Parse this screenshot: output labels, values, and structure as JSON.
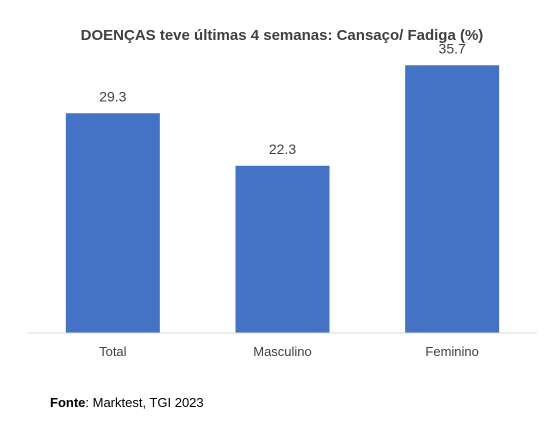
{
  "chart_data": {
    "type": "bar",
    "title": "DOENÇAS teve últimas 4 semanas: Cansaço/ Fadiga (%)",
    "categories": [
      "Total",
      "Masculino",
      "Feminino"
    ],
    "values": [
      29.3,
      22.3,
      35.7
    ],
    "value_labels": [
      "29.3",
      "22.3",
      "35.7"
    ],
    "bar_color": "#4472C4",
    "xlabel": "",
    "ylabel": "",
    "ylim": [
      0,
      38
    ],
    "grid": false,
    "legend": "none"
  },
  "source": {
    "label": "Fonte",
    "text": ": Marktest, TGI 2023"
  }
}
